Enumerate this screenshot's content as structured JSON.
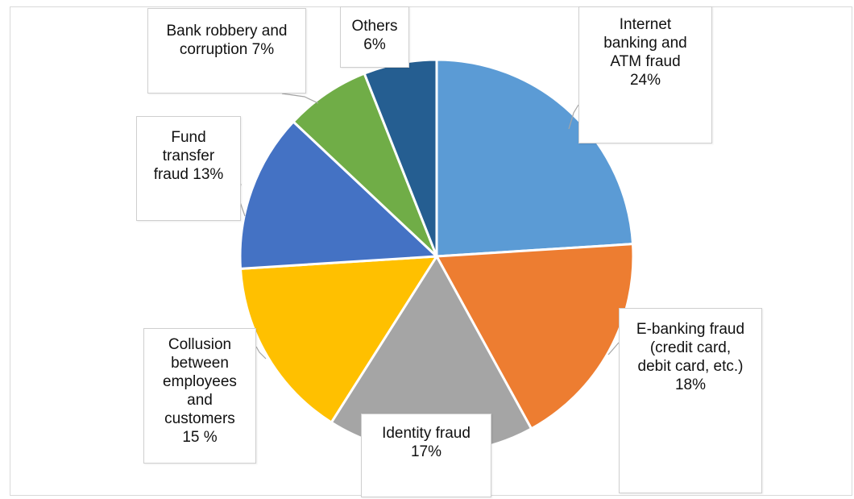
{
  "chart_data": {
    "type": "pie",
    "slices": [
      {
        "label": "Internet banking and ATM fraud 24%",
        "value": 24,
        "color": "#5B9BD5"
      },
      {
        "label": "E-banking fraud (credit card, debit card, etc.) 18%",
        "value": 18,
        "color": "#ED7D31"
      },
      {
        "label": "Identity fraud 17%",
        "value": 17,
        "color": "#A5A5A5"
      },
      {
        "label": "Collusion between employees and customers 15 %",
        "value": 15,
        "color": "#FFC000"
      },
      {
        "label": "Fund transfer fraud 13%",
        "value": 13,
        "color": "#4472C4"
      },
      {
        "label": "Bank robbery and corruption 7%",
        "value": 7,
        "color": "#70AD47"
      },
      {
        "label": "Others 6%",
        "value": 6,
        "color": "#255E91"
      }
    ]
  },
  "labels": {
    "internet": "Internet\nbanking and\nATM fraud\n24%",
    "ebanking": "E-banking fraud\n(credit card,\ndebit card, etc.)\n18%",
    "identity": "Identity fraud\n17%",
    "collusion": "Collusion\nbetween\nemployees\nand\ncustomers\n15 %",
    "fund": "Fund\ntransfer\nfraud 13%",
    "robbery": "Bank robbery and\ncorruption 7%",
    "others": "Others\n6%"
  }
}
